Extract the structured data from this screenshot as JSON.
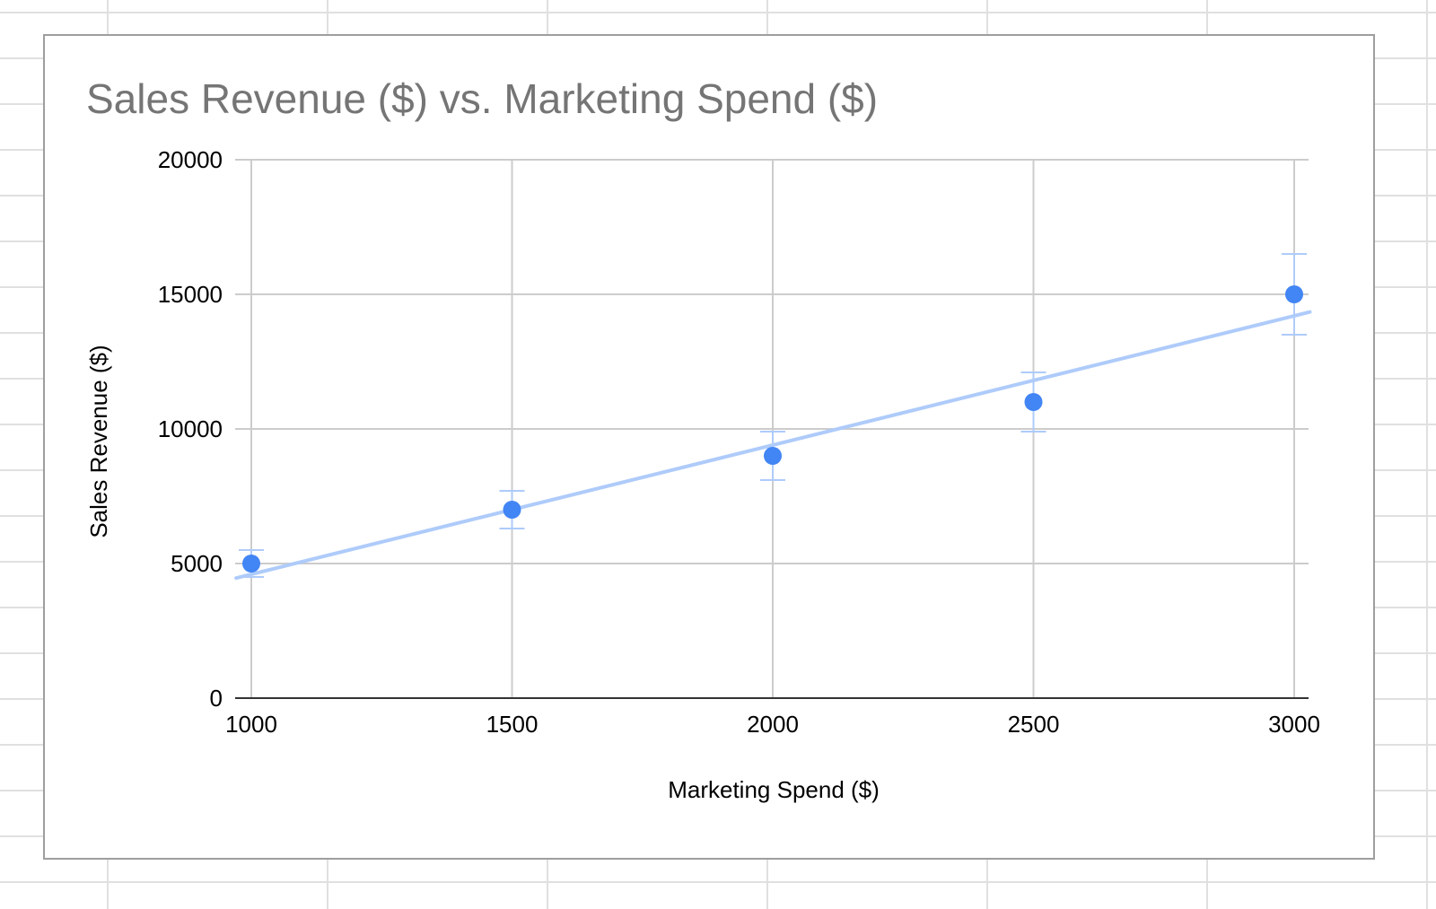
{
  "chart_data": {
    "type": "scatter",
    "title": "Sales Revenue ($) vs. Marketing Spend ($)",
    "xlabel": "Marketing Spend ($)",
    "ylabel": "Sales Revenue ($)",
    "x_ticks": [
      "1000",
      "1500",
      "2000",
      "2500",
      "3000"
    ],
    "y_ticks": [
      "0",
      "5000",
      "10000",
      "15000",
      "20000"
    ],
    "xlim": [
      1000,
      3000
    ],
    "ylim": [
      0,
      20000
    ],
    "grid": true,
    "legend": "none",
    "series": [
      {
        "x": [
          1000,
          1500,
          2000,
          2500,
          3000
        ],
        "y": [
          5000,
          7000,
          9000,
          11000,
          15000
        ],
        "error": [
          500,
          700,
          900,
          1100,
          1500
        ],
        "color": "#4285f4"
      }
    ],
    "trendline": {
      "type": "linear",
      "color": "#aecbfa",
      "start": [
        1000,
        4600
      ],
      "end": [
        3000,
        14200
      ]
    }
  }
}
